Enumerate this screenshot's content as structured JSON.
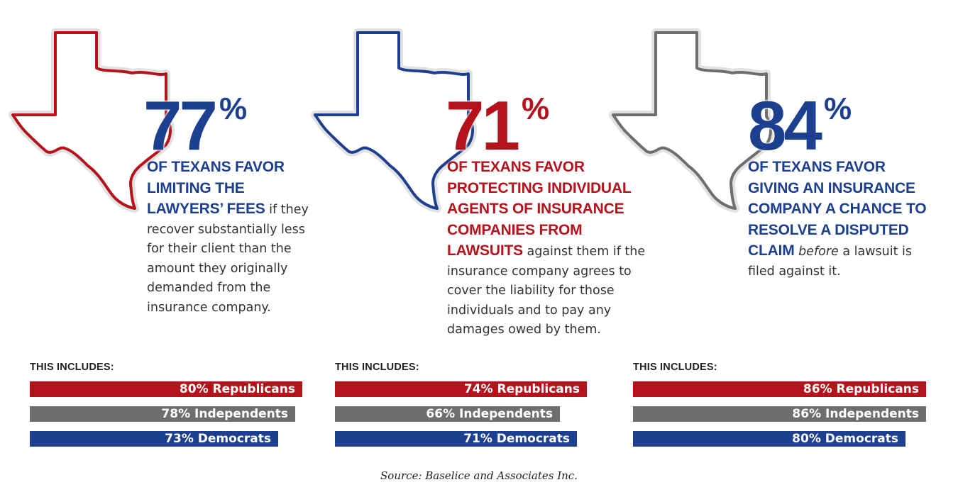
{
  "colors": {
    "red": "#b5121b",
    "blue": "#1d3f8f",
    "gray": "#6e6e6e",
    "text": "#333333"
  },
  "chart_data": [
    {
      "type": "bar",
      "orientation": "horizontal",
      "state_icon": "texas-outline-icon",
      "outline_color": "red",
      "headline": {
        "value": 77,
        "unit": "%",
        "color": "blue",
        "parts": [
          {
            "text": "OF TEXANS FAVOR LIMITING THE LAWYERS’ FEES",
            "style": "highlight",
            "color": "blue"
          },
          {
            "text": " if they recover substantially less for their client than the amount they originally demanded from the insurance company.",
            "style": "plain"
          }
        ]
      },
      "includes_label": "THIS INCLUDES:",
      "categories": [
        "Republicans",
        "Independents",
        "Democrats"
      ],
      "values": [
        80,
        78,
        73
      ],
      "labels": [
        "80% Republicans",
        "78% Independents",
        "73% Democrats"
      ],
      "bar_colors": [
        "red",
        "gray",
        "blue"
      ]
    },
    {
      "type": "bar",
      "orientation": "horizontal",
      "state_icon": "texas-outline-icon",
      "outline_color": "blue",
      "headline": {
        "value": 71,
        "unit": "%",
        "color": "red",
        "parts": [
          {
            "text": "OF TEXANS FAVOR PROTECTING INDIVIDUAL AGENTS OF INSURANCE COMPANIES FROM LAWSUITS",
            "style": "highlight",
            "color": "red"
          },
          {
            "text": " against them if the insurance company agrees to cover the liability for those individuals and to pay any damages owed by them.",
            "style": "plain"
          }
        ]
      },
      "includes_label": "THIS INCLUDES:",
      "categories": [
        "Republicans",
        "Independents",
        "Democrats"
      ],
      "values": [
        74,
        66,
        71
      ],
      "labels": [
        "74% Republicans",
        "66% Independents",
        "71% Democrats"
      ],
      "bar_colors": [
        "red",
        "gray",
        "blue"
      ]
    },
    {
      "type": "bar",
      "orientation": "horizontal",
      "state_icon": "texas-outline-icon",
      "outline_color": "gray",
      "headline": {
        "value": 84,
        "unit": "%",
        "color": "blue",
        "parts": [
          {
            "text": "OF TEXANS FAVOR GIVING AN INSURANCE COMPANY A CHANCE TO RESOLVE A DISPUTED CLAIM",
            "style": "highlight",
            "color": "blue"
          },
          {
            "text": " ",
            "style": "plain"
          },
          {
            "text": "before",
            "style": "italic"
          },
          {
            "text": " a lawsuit is filed against it.",
            "style": "plain"
          }
        ]
      },
      "includes_label": "THIS INCLUDES:",
      "categories": [
        "Republicans",
        "Independents",
        "Democrats"
      ],
      "values": [
        86,
        86,
        80
      ],
      "labels": [
        "86% Republicans",
        "86% Independents",
        "80% Democrats"
      ],
      "bar_colors": [
        "red",
        "gray",
        "blue"
      ]
    }
  ],
  "source": "Source: Baselice and Associates Inc."
}
